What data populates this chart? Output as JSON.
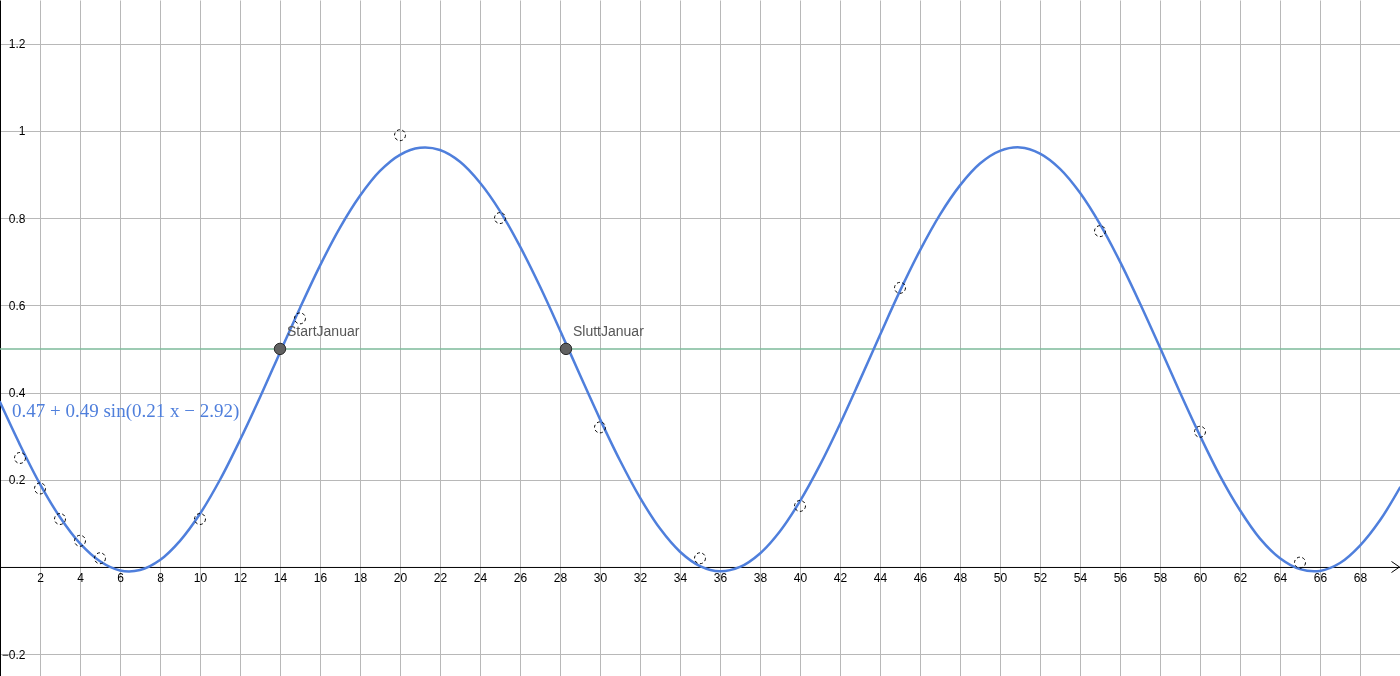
{
  "chart_data": {
    "type": "line",
    "xlim": [
      0,
      70
    ],
    "xticks": [
      2,
      4,
      6,
      8,
      10,
      12,
      14,
      16,
      18,
      20,
      22,
      24,
      26,
      28,
      30,
      32,
      34,
      36,
      38,
      40,
      42,
      44,
      46,
      48,
      50,
      52,
      54,
      56,
      58,
      60,
      62,
      64,
      66,
      68
    ],
    "ylim": [
      -0.25,
      1.3
    ],
    "yticks": [
      -0.2,
      0.2,
      0.4,
      0.6,
      0.8,
      1,
      1.2
    ],
    "grid": true,
    "series": [
      {
        "name": "0.47 + 0.49 sin(0.21 x − 2.92)",
        "color": "#4f7fdc",
        "x": [
          0,
          1,
          2,
          3,
          4,
          5,
          6,
          7,
          8,
          9,
          10,
          11,
          12,
          13,
          14,
          15,
          16,
          17,
          18,
          19,
          20,
          21,
          22,
          23,
          24,
          25,
          26,
          27,
          28,
          29,
          30,
          31,
          32,
          33,
          34,
          35,
          36,
          37,
          38,
          39,
          40,
          41,
          42,
          43,
          44,
          45,
          46,
          47,
          48,
          49,
          50,
          51,
          52,
          53,
          54,
          55,
          56,
          57,
          58,
          59,
          60,
          61,
          62,
          63,
          64,
          65,
          66,
          67,
          68,
          69,
          70
        ],
        "values": [
          0.378,
          0.28,
          0.19,
          0.114,
          0.054,
          0.013,
          -0.008,
          -0.007,
          0.016,
          0.06,
          0.122,
          0.2,
          0.291,
          0.389,
          0.492,
          0.594,
          0.691,
          0.778,
          0.851,
          0.908,
          0.945,
          0.961,
          0.956,
          0.929,
          0.881,
          0.816,
          0.735,
          0.643,
          0.543,
          0.44,
          0.339,
          0.244,
          0.159,
          0.088,
          0.035,
          0.002,
          -0.01,
          0.0,
          0.031,
          0.082,
          0.151,
          0.234,
          0.328,
          0.429,
          0.532,
          0.633,
          0.726,
          0.808,
          0.875,
          0.925,
          0.954,
          0.962,
          0.948,
          0.913,
          0.858,
          0.786,
          0.7,
          0.604,
          0.503,
          0.4,
          0.301,
          0.209,
          0.13,
          0.065,
          0.02,
          -0.005,
          -0.009,
          0.009,
          0.049,
          0.107,
          0.182
        ]
      },
      {
        "type": "scatter",
        "color": "#000000",
        "marker": "circle",
        "line_style": "dashed",
        "x": [
          1,
          2,
          3,
          4,
          5,
          10,
          15,
          20,
          25,
          30,
          35,
          40,
          45,
          55,
          60,
          65
        ],
        "values": [
          0.25,
          0.18,
          0.11,
          0.06,
          0.02,
          0.11,
          0.57,
          0.99,
          0.8,
          0.32,
          0.02,
          0.14,
          0.64,
          0.77,
          0.31,
          0.01
        ]
      },
      {
        "type": "scatter",
        "color": "#616161",
        "marker": "circle",
        "x": [
          14,
          28.3
        ],
        "values": [
          0.5,
          0.5
        ]
      }
    ],
    "ref_lines": [
      {
        "axis": "y",
        "value": 0.5,
        "color": "#7dba9a"
      }
    ],
    "annotations": [
      {
        "text": "StartJanuar",
        "x": 14,
        "y": 0.5
      },
      {
        "text": "SluttJanuar",
        "x": 28.3,
        "y": 0.5
      }
    ]
  }
}
